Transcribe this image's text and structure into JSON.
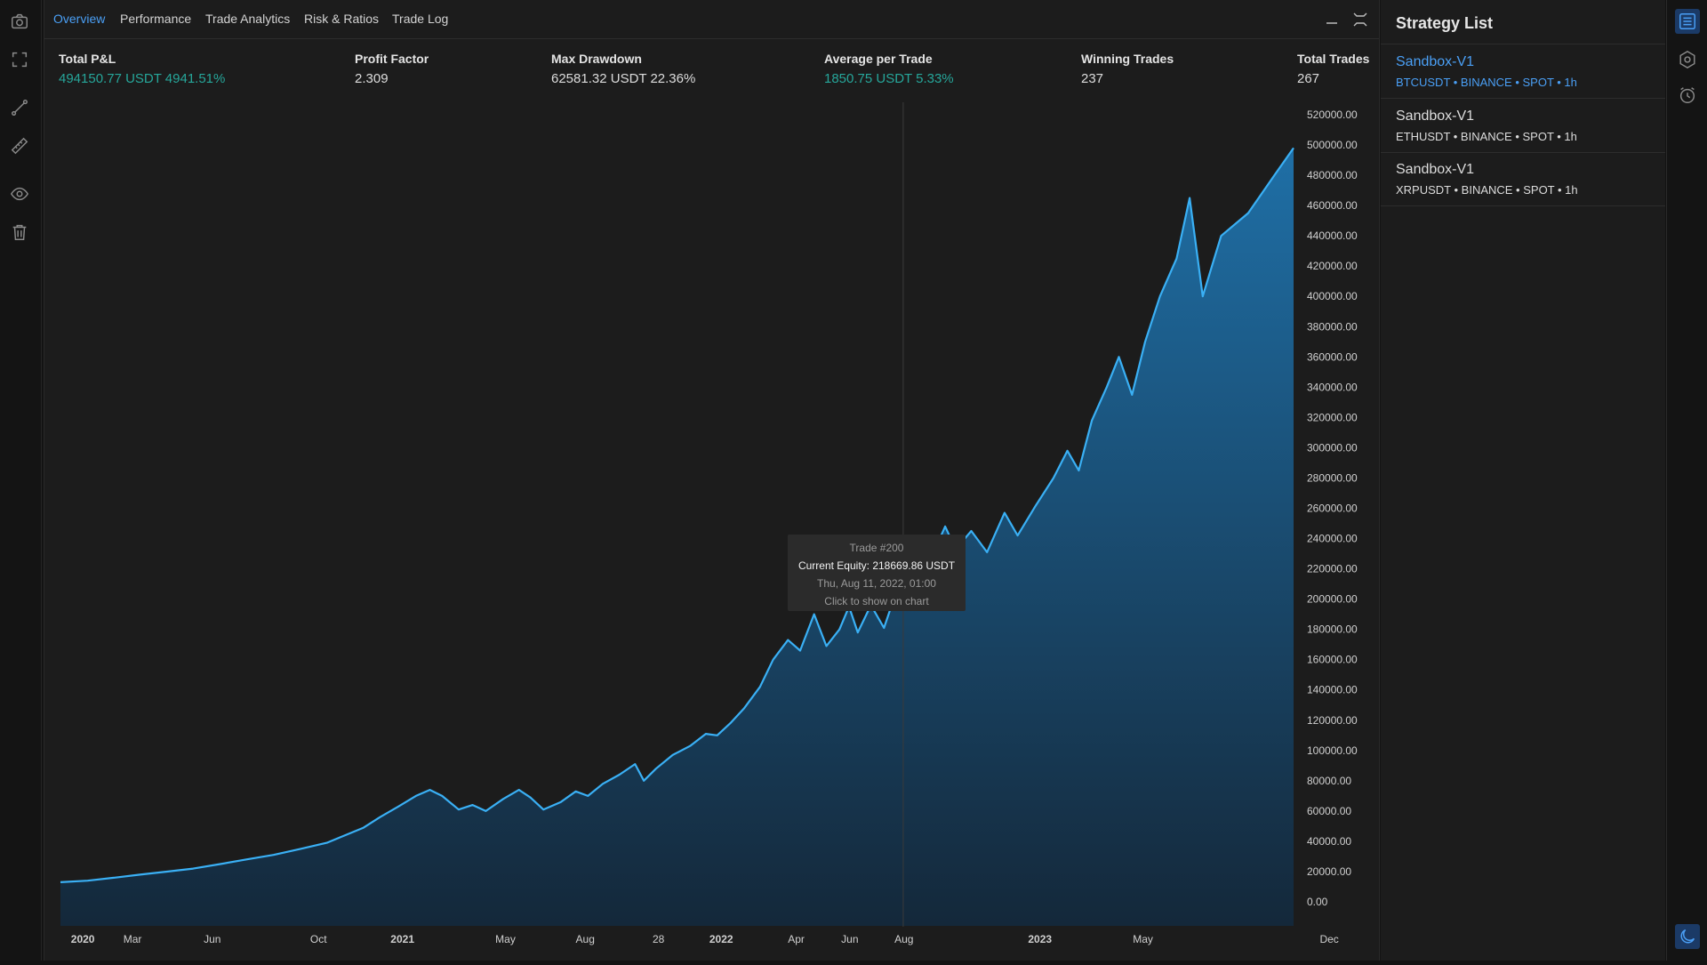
{
  "tabs": [
    "Overview",
    "Performance",
    "Trade Analytics",
    "Risk & Ratios",
    "Trade Log"
  ],
  "active_tab": "Overview",
  "stats": {
    "total_pnl": {
      "label": "Total P&L",
      "value": "494150.77 USDT 4941.51%"
    },
    "profit_factor": {
      "label": "Profit Factor",
      "value": "2.309"
    },
    "max_drawdown": {
      "label": "Max Drawdown",
      "value": "62581.32 USDT 22.36%"
    },
    "avg_trade": {
      "label": "Average per Trade",
      "value": "1850.75 USDT 5.33%"
    },
    "winning_trades": {
      "label": "Winning Trades",
      "value": "237"
    },
    "total_trades": {
      "label": "Total Trades",
      "value": "267"
    }
  },
  "tooltip": {
    "trade": "Trade #200",
    "equity": "Current Equity: 218669.86 USDT",
    "date": "Thu, Aug 11, 2022, 01:00",
    "hint": "Click to show on chart"
  },
  "chart_data": {
    "type": "area",
    "title": "",
    "xlabel": "",
    "ylabel": "",
    "ylim": [
      0,
      520000
    ],
    "yticks": [
      "520000.00",
      "500000.00",
      "480000.00",
      "460000.00",
      "440000.00",
      "420000.00",
      "400000.00",
      "380000.00",
      "360000.00",
      "340000.00",
      "320000.00",
      "300000.00",
      "280000.00",
      "260000.00",
      "240000.00",
      "220000.00",
      "200000.00",
      "180000.00",
      "160000.00",
      "140000.00",
      "120000.00",
      "100000.00",
      "80000.00",
      "60000.00",
      "40000.00",
      "20000.00",
      "0.00"
    ],
    "xticks": [
      {
        "label": "2020",
        "bold": true,
        "x": "2020-01-01"
      },
      {
        "label": "Mar",
        "bold": false,
        "x": "2020-03-01"
      },
      {
        "label": "Jun",
        "bold": false,
        "x": "2020-06-01"
      },
      {
        "label": "Oct",
        "bold": false,
        "x": "2020-10-01"
      },
      {
        "label": "2021",
        "bold": true,
        "x": "2021-01-01"
      },
      {
        "label": "May",
        "bold": false,
        "x": "2021-05-01"
      },
      {
        "label": "Aug",
        "bold": false,
        "x": "2021-08-01"
      },
      {
        "label": "28",
        "bold": false,
        "x": "2021-10-28"
      },
      {
        "label": "2022",
        "bold": true,
        "x": "2022-01-01"
      },
      {
        "label": "Apr",
        "bold": false,
        "x": "2022-04-01"
      },
      {
        "label": "Jun",
        "bold": false,
        "x": "2022-06-01"
      },
      {
        "label": "Aug",
        "bold": false,
        "x": "2022-08-01"
      },
      {
        "label": "2023",
        "bold": true,
        "x": "2023-01-01"
      },
      {
        "label": "May",
        "bold": false,
        "x": "2023-05-01"
      },
      {
        "label": "Dec",
        "bold": false,
        "x": "2023-12-01"
      }
    ],
    "series": [
      {
        "color": "#3ab0f5",
        "points": [
          [
            "2019-12-20",
            13000
          ],
          [
            "2020-01-20",
            14000
          ],
          [
            "2020-02-20",
            16000
          ],
          [
            "2020-03-20",
            18000
          ],
          [
            "2020-04-20",
            20000
          ],
          [
            "2020-05-20",
            22000
          ],
          [
            "2020-06-20",
            25000
          ],
          [
            "2020-07-20",
            28000
          ],
          [
            "2020-08-20",
            31000
          ],
          [
            "2020-09-20",
            35000
          ],
          [
            "2020-10-20",
            39000
          ],
          [
            "2020-11-10",
            44000
          ],
          [
            "2020-12-01",
            49000
          ],
          [
            "2020-12-20",
            56000
          ],
          [
            "2021-01-10",
            63000
          ],
          [
            "2021-01-30",
            70000
          ],
          [
            "2021-02-15",
            74000
          ],
          [
            "2021-03-01",
            70000
          ],
          [
            "2021-03-20",
            61000
          ],
          [
            "2021-04-05",
            64000
          ],
          [
            "2021-04-20",
            60000
          ],
          [
            "2021-05-10",
            68000
          ],
          [
            "2021-05-28",
            74000
          ],
          [
            "2021-06-10",
            69000
          ],
          [
            "2021-06-25",
            61000
          ],
          [
            "2021-07-15",
            66000
          ],
          [
            "2021-08-01",
            73000
          ],
          [
            "2021-08-15",
            70000
          ],
          [
            "2021-09-01",
            78000
          ],
          [
            "2021-09-20",
            84000
          ],
          [
            "2021-10-08",
            91000
          ],
          [
            "2021-10-18",
            80000
          ],
          [
            "2021-11-01",
            88000
          ],
          [
            "2021-11-20",
            97000
          ],
          [
            "2021-12-10",
            103000
          ],
          [
            "2021-12-28",
            111000
          ],
          [
            "2022-01-10",
            110000
          ],
          [
            "2022-01-25",
            118000
          ],
          [
            "2022-02-10",
            128000
          ],
          [
            "2022-02-28",
            142000
          ],
          [
            "2022-03-15",
            160000
          ],
          [
            "2022-04-01",
            173000
          ],
          [
            "2022-04-15",
            166000
          ],
          [
            "2022-05-01",
            190000
          ],
          [
            "2022-05-15",
            169000
          ],
          [
            "2022-05-30",
            180000
          ],
          [
            "2022-06-10",
            195000
          ],
          [
            "2022-06-20",
            178000
          ],
          [
            "2022-07-05",
            196000
          ],
          [
            "2022-07-20",
            181000
          ],
          [
            "2022-08-03",
            205000
          ],
          [
            "2022-08-11",
            218670
          ],
          [
            "2022-08-18",
            240000
          ],
          [
            "2022-08-28",
            207000
          ],
          [
            "2022-09-12",
            227000
          ],
          [
            "2022-09-28",
            248000
          ],
          [
            "2022-10-10",
            233000
          ],
          [
            "2022-10-28",
            245000
          ],
          [
            "2022-11-15",
            231000
          ],
          [
            "2022-12-05",
            257000
          ],
          [
            "2022-12-20",
            242000
          ],
          [
            "2023-01-10",
            262000
          ],
          [
            "2023-01-30",
            280000
          ],
          [
            "2023-02-15",
            298000
          ],
          [
            "2023-02-28",
            285000
          ],
          [
            "2023-03-15",
            318000
          ],
          [
            "2023-04-01",
            340000
          ],
          [
            "2023-04-15",
            360000
          ],
          [
            "2023-04-30",
            335000
          ],
          [
            "2023-05-15",
            370000
          ],
          [
            "2023-06-01",
            400000
          ],
          [
            "2023-06-20",
            425000
          ],
          [
            "2023-07-05",
            465000
          ],
          [
            "2023-07-20",
            400000
          ],
          [
            "2023-08-10",
            440000
          ],
          [
            "2023-09-10",
            455000
          ],
          [
            "2023-10-10",
            480000
          ],
          [
            "2023-11-01",
            498000
          ]
        ]
      }
    ]
  },
  "strategy_panel": {
    "title": "Strategy List",
    "items": [
      {
        "name": "Sandbox-V1",
        "sub": "BTCUSDT • BINANCE • SPOT • 1h",
        "active": true
      },
      {
        "name": "Sandbox-V1",
        "sub": "ETHUSDT • BINANCE • SPOT • 1h",
        "active": false
      },
      {
        "name": "Sandbox-V1",
        "sub": "XRPUSDT • BINANCE • SPOT • 1h",
        "active": false
      }
    ]
  }
}
